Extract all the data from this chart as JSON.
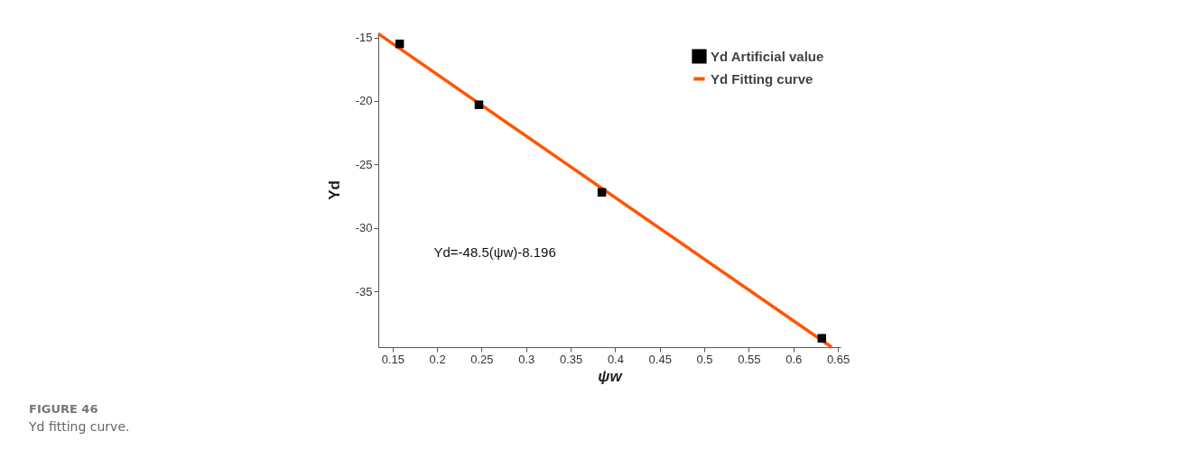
{
  "chart_data": {
    "type": "scatter",
    "xlabel": "ψw",
    "ylabel": "Yd",
    "annotations": [
      "Yd=-48.5(ψw)-8.196",
      "FIGURE 46",
      "Yd fitting curve."
    ],
    "xlim": [
      0.134,
      0.653
    ],
    "ylim": [
      -39.4,
      -14.6
    ],
    "xticks": [
      0.15,
      0.2,
      0.25,
      0.3,
      0.35,
      0.4,
      0.45,
      0.5,
      0.55,
      0.6,
      0.65
    ],
    "yticks": [
      -15,
      -20,
      -25,
      -30,
      -35
    ],
    "grid": false,
    "legend": "top right",
    "series": [
      {
        "name": "Yd Artificial value",
        "marker": "square",
        "color": "#000000",
        "x": [
          0.158,
          0.247,
          0.385,
          0.632
        ],
        "values": [
          -15.5,
          -20.3,
          -27.2,
          -38.7
        ]
      },
      {
        "name": "Yd Fitting curve",
        "type": "line",
        "marker": "none",
        "line_style": "solid",
        "color": "#ff5500",
        "x": [
          0.134,
          0.643
        ],
        "values": [
          -14.7,
          -39.4
        ]
      }
    ]
  }
}
